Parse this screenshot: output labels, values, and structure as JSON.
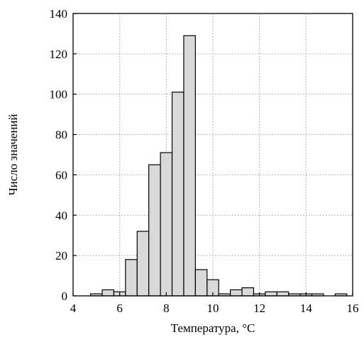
{
  "chart_data": {
    "type": "bar",
    "title": "",
    "xlabel": "Температура, °C",
    "ylabel": "Число значений",
    "xlim": [
      4,
      16
    ],
    "ylim": [
      0,
      140
    ],
    "xticks": [
      4,
      6,
      8,
      10,
      12,
      14,
      16
    ],
    "yticks": [
      0,
      20,
      40,
      60,
      80,
      100,
      120,
      140
    ],
    "grid": true,
    "bin_width": 0.5,
    "bins": [
      {
        "x0": 4.75,
        "x1": 5.25,
        "count": 1
      },
      {
        "x0": 5.25,
        "x1": 5.75,
        "count": 3
      },
      {
        "x0": 5.75,
        "x1": 6.25,
        "count": 2
      },
      {
        "x0": 6.25,
        "x1": 6.75,
        "count": 18
      },
      {
        "x0": 6.75,
        "x1": 7.25,
        "count": 32
      },
      {
        "x0": 7.25,
        "x1": 7.75,
        "count": 65
      },
      {
        "x0": 7.75,
        "x1": 8.25,
        "count": 71
      },
      {
        "x0": 8.25,
        "x1": 8.75,
        "count": 101
      },
      {
        "x0": 8.75,
        "x1": 9.25,
        "count": 129
      },
      {
        "x0": 9.25,
        "x1": 9.75,
        "count": 13
      },
      {
        "x0": 9.75,
        "x1": 10.25,
        "count": 8
      },
      {
        "x0": 10.25,
        "x1": 10.75,
        "count": 1
      },
      {
        "x0": 10.75,
        "x1": 11.25,
        "count": 3
      },
      {
        "x0": 11.25,
        "x1": 11.75,
        "count": 4
      },
      {
        "x0": 11.75,
        "x1": 12.25,
        "count": 1
      },
      {
        "x0": 12.25,
        "x1": 12.75,
        "count": 2
      },
      {
        "x0": 12.75,
        "x1": 13.25,
        "count": 2
      },
      {
        "x0": 13.25,
        "x1": 13.75,
        "count": 1
      },
      {
        "x0": 13.75,
        "x1": 14.25,
        "count": 1
      },
      {
        "x0": 14.25,
        "x1": 14.75,
        "count": 1
      },
      {
        "x0": 15.25,
        "x1": 15.75,
        "count": 1
      }
    ],
    "colors": {
      "bar_fill": "#d9d9d9",
      "bar_stroke": "#000000",
      "grid": "#9a9a9a"
    }
  }
}
